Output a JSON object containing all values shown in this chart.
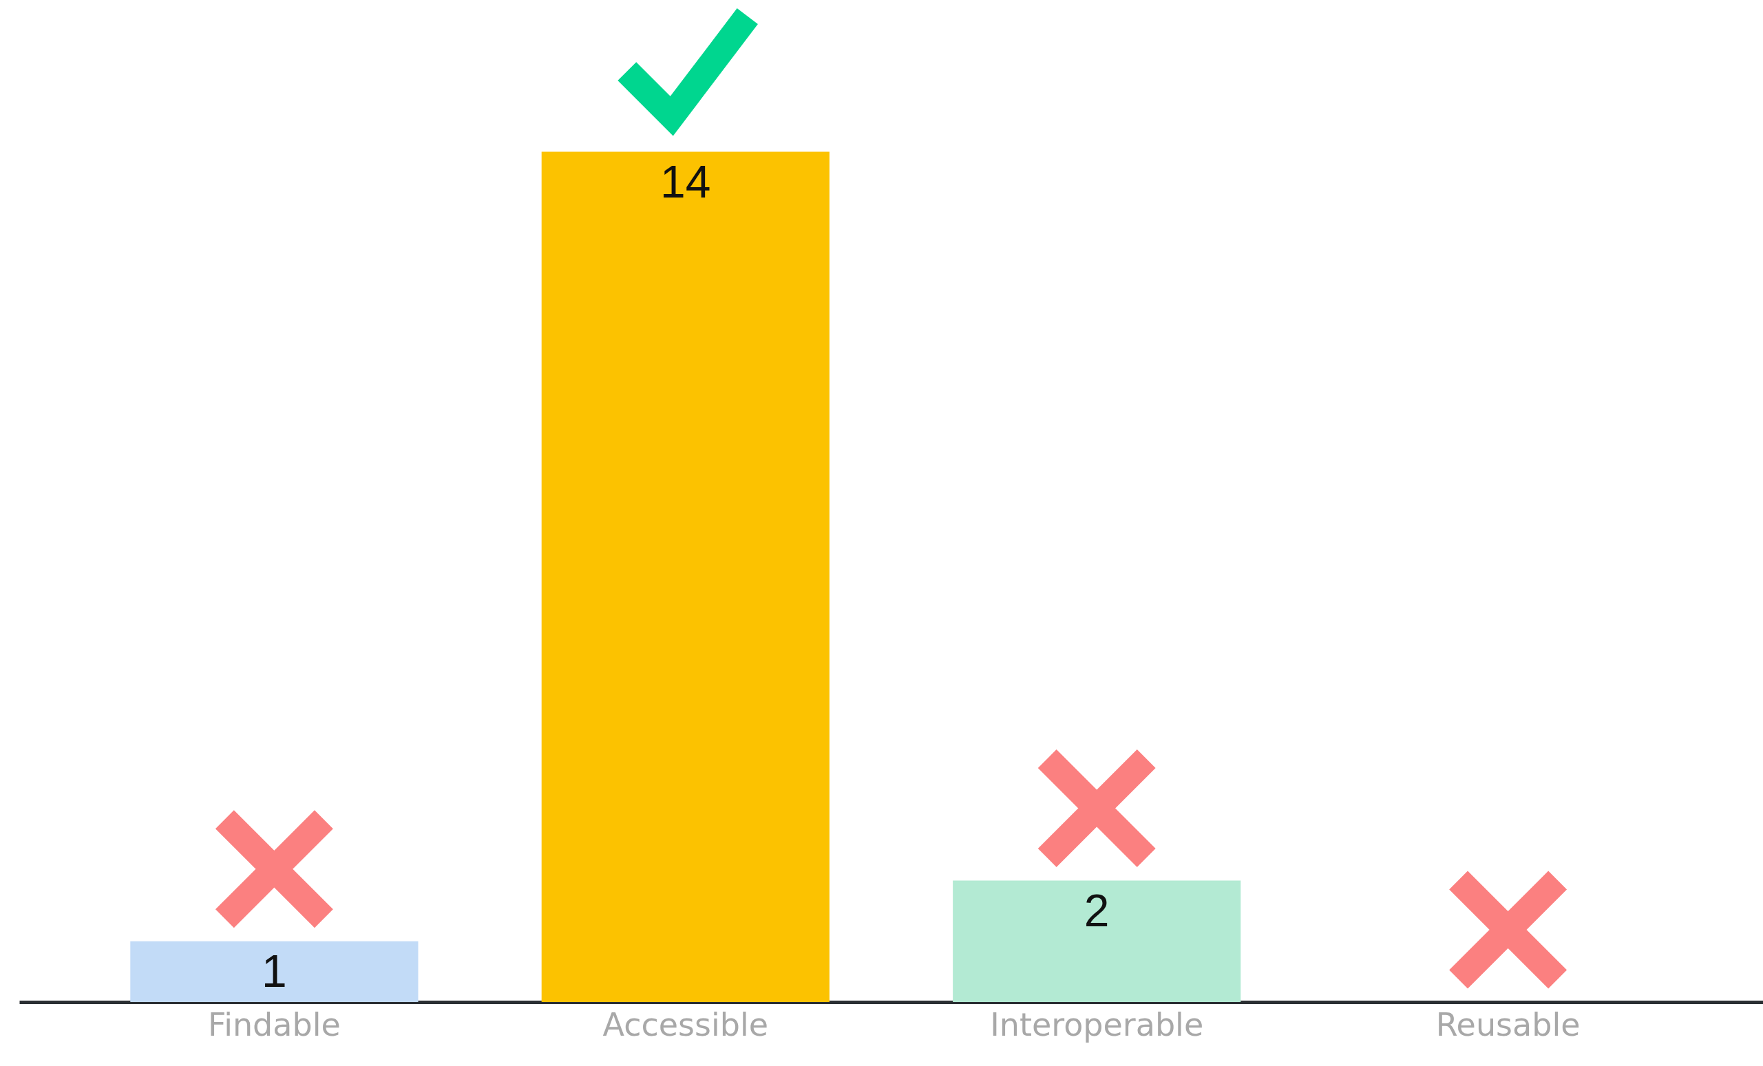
{
  "chart_data": {
    "type": "bar",
    "categories": [
      "Findable",
      "Accessible",
      "Interoperable",
      "Reusable"
    ],
    "values": [
      1,
      14,
      2,
      0
    ],
    "colors": [
      "#c2dbf7",
      "#fcc200",
      "#b3ead3",
      "#ffffff"
    ],
    "value_labels": [
      "1",
      "14",
      "2",
      null
    ],
    "ylim": [
      0,
      16.5
    ]
  }
}
